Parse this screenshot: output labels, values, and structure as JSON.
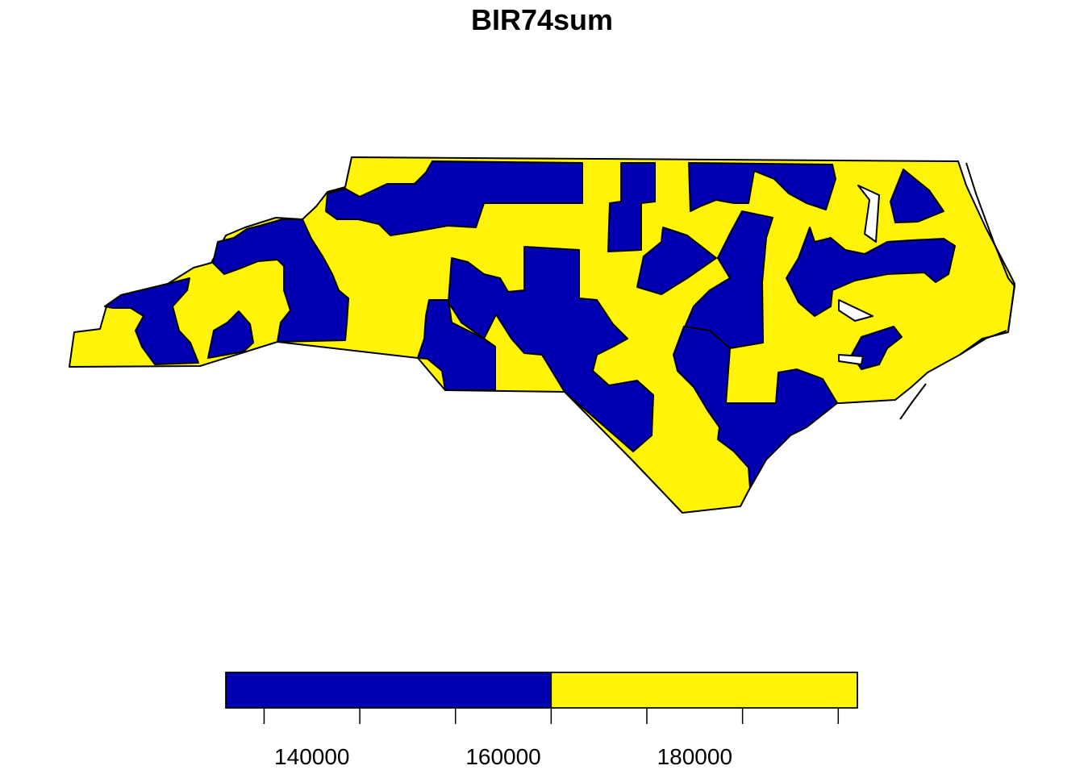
{
  "title": "BIR74sum",
  "colors": {
    "low": "#0000b2",
    "high": "#fff30a",
    "border": "#000000",
    "background": "#ffffff"
  },
  "legend": {
    "min": 131000,
    "break": 165000,
    "max": 197000,
    "ticks": [
      135000,
      145000,
      155000,
      165000,
      175000,
      185000,
      195000
    ],
    "tick_labels": [
      {
        "value": 140000,
        "label": "140000"
      },
      {
        "value": 160000,
        "label": "160000"
      },
      {
        "value": 180000,
        "label": "180000"
      }
    ]
  }
}
